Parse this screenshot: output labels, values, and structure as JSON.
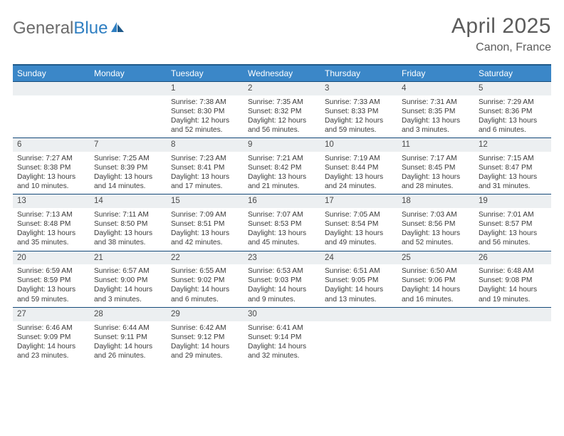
{
  "brand": {
    "part1": "General",
    "part2": "Blue"
  },
  "title": "April 2025",
  "location": "Canon, France",
  "colors": {
    "header_bg": "#3b87c8",
    "header_border_top": "#1f5a8a",
    "daynum_bg": "#eceff1",
    "row_divider": "#154a7a",
    "text": "#3a3a3a",
    "title_text": "#5b5b5b",
    "logo_gray": "#6b6b6b",
    "logo_blue": "#2f7fc2",
    "page_bg": "#ffffff"
  },
  "weekdays": [
    "Sunday",
    "Monday",
    "Tuesday",
    "Wednesday",
    "Thursday",
    "Friday",
    "Saturday"
  ],
  "weeks": [
    [
      null,
      null,
      {
        "n": "1",
        "sunrise": "7:38 AM",
        "sunset": "8:30 PM",
        "daylight": "12 hours and 52 minutes."
      },
      {
        "n": "2",
        "sunrise": "7:35 AM",
        "sunset": "8:32 PM",
        "daylight": "12 hours and 56 minutes."
      },
      {
        "n": "3",
        "sunrise": "7:33 AM",
        "sunset": "8:33 PM",
        "daylight": "12 hours and 59 minutes."
      },
      {
        "n": "4",
        "sunrise": "7:31 AM",
        "sunset": "8:35 PM",
        "daylight": "13 hours and 3 minutes."
      },
      {
        "n": "5",
        "sunrise": "7:29 AM",
        "sunset": "8:36 PM",
        "daylight": "13 hours and 6 minutes."
      }
    ],
    [
      {
        "n": "6",
        "sunrise": "7:27 AM",
        "sunset": "8:38 PM",
        "daylight": "13 hours and 10 minutes."
      },
      {
        "n": "7",
        "sunrise": "7:25 AM",
        "sunset": "8:39 PM",
        "daylight": "13 hours and 14 minutes."
      },
      {
        "n": "8",
        "sunrise": "7:23 AM",
        "sunset": "8:41 PM",
        "daylight": "13 hours and 17 minutes."
      },
      {
        "n": "9",
        "sunrise": "7:21 AM",
        "sunset": "8:42 PM",
        "daylight": "13 hours and 21 minutes."
      },
      {
        "n": "10",
        "sunrise": "7:19 AM",
        "sunset": "8:44 PM",
        "daylight": "13 hours and 24 minutes."
      },
      {
        "n": "11",
        "sunrise": "7:17 AM",
        "sunset": "8:45 PM",
        "daylight": "13 hours and 28 minutes."
      },
      {
        "n": "12",
        "sunrise": "7:15 AM",
        "sunset": "8:47 PM",
        "daylight": "13 hours and 31 minutes."
      }
    ],
    [
      {
        "n": "13",
        "sunrise": "7:13 AM",
        "sunset": "8:48 PM",
        "daylight": "13 hours and 35 minutes."
      },
      {
        "n": "14",
        "sunrise": "7:11 AM",
        "sunset": "8:50 PM",
        "daylight": "13 hours and 38 minutes."
      },
      {
        "n": "15",
        "sunrise": "7:09 AM",
        "sunset": "8:51 PM",
        "daylight": "13 hours and 42 minutes."
      },
      {
        "n": "16",
        "sunrise": "7:07 AM",
        "sunset": "8:53 PM",
        "daylight": "13 hours and 45 minutes."
      },
      {
        "n": "17",
        "sunrise": "7:05 AM",
        "sunset": "8:54 PM",
        "daylight": "13 hours and 49 minutes."
      },
      {
        "n": "18",
        "sunrise": "7:03 AM",
        "sunset": "8:56 PM",
        "daylight": "13 hours and 52 minutes."
      },
      {
        "n": "19",
        "sunrise": "7:01 AM",
        "sunset": "8:57 PM",
        "daylight": "13 hours and 56 minutes."
      }
    ],
    [
      {
        "n": "20",
        "sunrise": "6:59 AM",
        "sunset": "8:59 PM",
        "daylight": "13 hours and 59 minutes."
      },
      {
        "n": "21",
        "sunrise": "6:57 AM",
        "sunset": "9:00 PM",
        "daylight": "14 hours and 3 minutes."
      },
      {
        "n": "22",
        "sunrise": "6:55 AM",
        "sunset": "9:02 PM",
        "daylight": "14 hours and 6 minutes."
      },
      {
        "n": "23",
        "sunrise": "6:53 AM",
        "sunset": "9:03 PM",
        "daylight": "14 hours and 9 minutes."
      },
      {
        "n": "24",
        "sunrise": "6:51 AM",
        "sunset": "9:05 PM",
        "daylight": "14 hours and 13 minutes."
      },
      {
        "n": "25",
        "sunrise": "6:50 AM",
        "sunset": "9:06 PM",
        "daylight": "14 hours and 16 minutes."
      },
      {
        "n": "26",
        "sunrise": "6:48 AM",
        "sunset": "9:08 PM",
        "daylight": "14 hours and 19 minutes."
      }
    ],
    [
      {
        "n": "27",
        "sunrise": "6:46 AM",
        "sunset": "9:09 PM",
        "daylight": "14 hours and 23 minutes."
      },
      {
        "n": "28",
        "sunrise": "6:44 AM",
        "sunset": "9:11 PM",
        "daylight": "14 hours and 26 minutes."
      },
      {
        "n": "29",
        "sunrise": "6:42 AM",
        "sunset": "9:12 PM",
        "daylight": "14 hours and 29 minutes."
      },
      {
        "n": "30",
        "sunrise": "6:41 AM",
        "sunset": "9:14 PM",
        "daylight": "14 hours and 32 minutes."
      },
      null,
      null,
      null
    ]
  ],
  "labels": {
    "sunrise": "Sunrise:",
    "sunset": "Sunset:",
    "daylight": "Daylight:"
  }
}
